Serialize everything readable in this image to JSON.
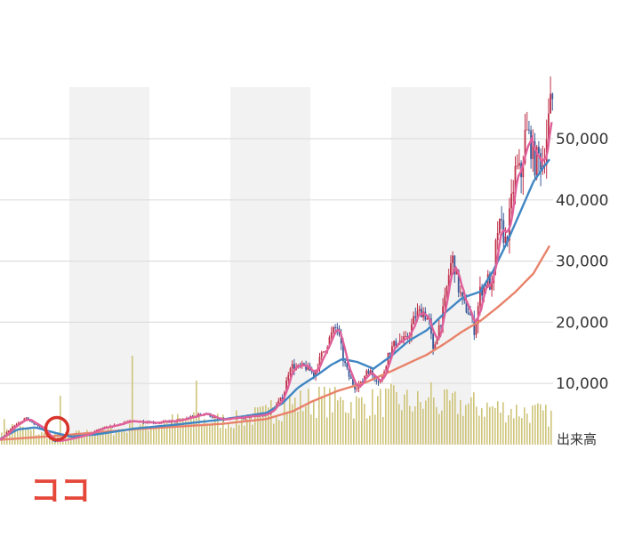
{
  "chart_data": {
    "type": "candlestick",
    "y_ticks": [
      "10,000",
      "20,000",
      "30,000",
      "40,000",
      "50,000"
    ],
    "y_tick_values": [
      10000,
      20000,
      30000,
      40000,
      50000
    ],
    "ylim": [
      0,
      58000
    ],
    "volume_label": "出来高",
    "annotation": "ココ",
    "grid": true,
    "colors": {
      "up": "#c0304a",
      "down": "#3a5a98",
      "ma_short": "#e0609a",
      "ma_mid": "#3f86c3",
      "ma_long": "#e8826a",
      "volume": "#cfc47a",
      "band": "#f2f2f2",
      "marker": "#d8342b"
    },
    "price_keypoints": [
      [
        0,
        800
      ],
      [
        8,
        2300
      ],
      [
        20,
        3700
      ],
      [
        28,
        4300
      ],
      [
        36,
        3500
      ],
      [
        45,
        2800
      ],
      [
        52,
        1700
      ],
      [
        55,
        1000
      ],
      [
        60,
        500
      ],
      [
        72,
        800
      ],
      [
        85,
        1200
      ],
      [
        100,
        1800
      ],
      [
        110,
        2500
      ],
      [
        125,
        3000
      ],
      [
        140,
        3700
      ],
      [
        160,
        3800
      ],
      [
        175,
        3600
      ],
      [
        200,
        3900
      ],
      [
        215,
        4500
      ],
      [
        230,
        5200
      ],
      [
        245,
        4000
      ],
      [
        260,
        4200
      ],
      [
        280,
        4600
      ],
      [
        300,
        5000
      ],
      [
        310,
        6500
      ],
      [
        318,
        8000
      ],
      [
        325,
        13000
      ],
      [
        333,
        12500
      ],
      [
        342,
        12800
      ],
      [
        352,
        11500
      ],
      [
        362,
        15000
      ],
      [
        372,
        18000
      ],
      [
        378,
        19500
      ],
      [
        385,
        14000
      ],
      [
        392,
        11000
      ],
      [
        398,
        9500
      ],
      [
        406,
        10000
      ],
      [
        412,
        12500
      ],
      [
        420,
        11000
      ],
      [
        428,
        10300
      ],
      [
        436,
        15000
      ],
      [
        446,
        17000
      ],
      [
        456,
        17000
      ],
      [
        466,
        21000
      ],
      [
        474,
        22000
      ],
      [
        482,
        20000
      ],
      [
        486,
        15000
      ],
      [
        492,
        19000
      ],
      [
        498,
        22000
      ],
      [
        505,
        29000
      ],
      [
        509,
        30500
      ],
      [
        514,
        26000
      ],
      [
        520,
        23000
      ],
      [
        527,
        21500
      ],
      [
        533,
        18500
      ],
      [
        539,
        25000
      ],
      [
        548,
        27000
      ],
      [
        553,
        25000
      ],
      [
        558,
        35000
      ],
      [
        563,
        35500
      ],
      [
        568,
        33000
      ],
      [
        573,
        38000
      ],
      [
        579,
        45000
      ],
      [
        585,
        44000
      ],
      [
        590,
        51000
      ],
      [
        595,
        50000
      ],
      [
        600,
        46000
      ],
      [
        605,
        47000
      ],
      [
        610,
        46000
      ],
      [
        615,
        52000
      ],
      [
        619,
        56000
      ],
      [
        621,
        56500
      ]
    ],
    "ma_mid_keypoints": [
      [
        0,
        900
      ],
      [
        20,
        2500
      ],
      [
        40,
        2800
      ],
      [
        60,
        2000
      ],
      [
        80,
        1300
      ],
      [
        110,
        1700
      ],
      [
        150,
        2600
      ],
      [
        200,
        3300
      ],
      [
        250,
        4100
      ],
      [
        300,
        5200
      ],
      [
        318,
        6800
      ],
      [
        335,
        9300
      ],
      [
        358,
        11500
      ],
      [
        372,
        13000
      ],
      [
        385,
        14000
      ],
      [
        402,
        13500
      ],
      [
        420,
        12400
      ],
      [
        440,
        14500
      ],
      [
        460,
        17000
      ],
      [
        480,
        18700
      ],
      [
        500,
        21500
      ],
      [
        520,
        24000
      ],
      [
        540,
        25000
      ],
      [
        555,
        28500
      ],
      [
        570,
        33000
      ],
      [
        585,
        38000
      ],
      [
        600,
        43000
      ],
      [
        612,
        45500
      ],
      [
        620,
        47000
      ]
    ],
    "ma_long_keypoints": [
      [
        0,
        800
      ],
      [
        60,
        1400
      ],
      [
        150,
        2500
      ],
      [
        250,
        3400
      ],
      [
        300,
        4200
      ],
      [
        330,
        5500
      ],
      [
        350,
        7000
      ],
      [
        380,
        8800
      ],
      [
        410,
        10100
      ],
      [
        440,
        12000
      ],
      [
        480,
        14700
      ],
      [
        500,
        16500
      ],
      [
        520,
        18500
      ],
      [
        540,
        20200
      ],
      [
        560,
        22500
      ],
      [
        580,
        25000
      ],
      [
        600,
        28000
      ],
      [
        620,
        33000
      ]
    ],
    "volume_keypoints": [
      [
        0,
        0.25
      ],
      [
        60,
        0.1
      ],
      [
        100,
        0.15
      ],
      [
        145,
        0.2
      ],
      [
        200,
        0.3
      ],
      [
        260,
        0.3
      ],
      [
        300,
        0.38
      ],
      [
        320,
        0.5
      ],
      [
        360,
        0.55
      ],
      [
        400,
        0.5
      ],
      [
        440,
        0.55
      ],
      [
        480,
        0.5
      ],
      [
        520,
        0.5
      ],
      [
        560,
        0.45
      ],
      [
        600,
        0.4
      ],
      [
        620,
        0.35
      ]
    ],
    "volume_spikes": [
      [
        148,
        1.0
      ],
      [
        220,
        0.72
      ],
      [
        485,
        0.7
      ],
      [
        67,
        0.55
      ],
      [
        305,
        0.5
      ],
      [
        386,
        0.5
      ]
    ]
  }
}
